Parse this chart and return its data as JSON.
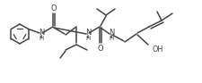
{
  "bg_color": "#ffffff",
  "line_color": "#444444",
  "text_color": "#444444",
  "lw": 1.1,
  "figsize": [
    2.25,
    0.93
  ],
  "dpi": 100,
  "xlim": [
    0,
    225
  ],
  "ylim": [
    0,
    93
  ]
}
